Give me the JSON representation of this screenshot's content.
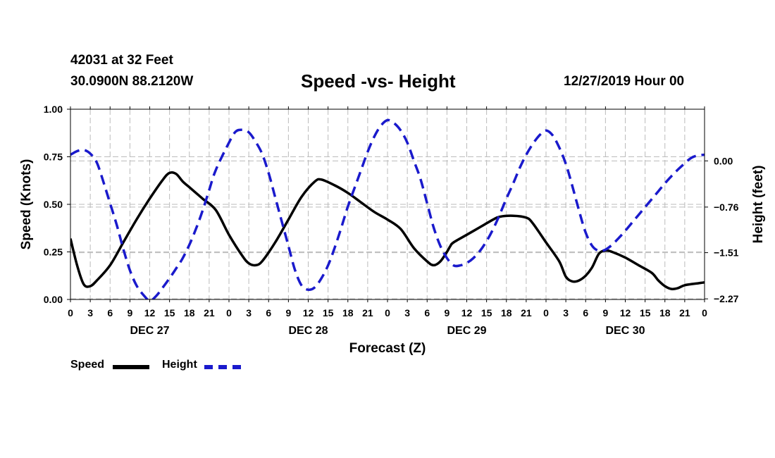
{
  "header": {
    "station": "42031 at 32 Feet",
    "coords": "30.0900N 88.2120W",
    "title": "Speed -vs- Height",
    "run_time": "12/27/2019 Hour 00"
  },
  "colors": {
    "speed": "#000000",
    "height": "#1a1acc",
    "grid": "#bbbbbb"
  },
  "legend": {
    "speed_label": "Speed",
    "height_label": "Height"
  },
  "chart_data": {
    "type": "line",
    "title": "Speed -vs- Height",
    "xlabel": "Forecast (Z)",
    "ylabel": "Speed (Knots)",
    "y2label": "Height (feet)",
    "xlim": [
      0,
      96
    ],
    "ylim": [
      0,
      1
    ],
    "y2lim": [
      -2.28,
      0.85
    ],
    "x_ticks": [
      0,
      3,
      6,
      9,
      12,
      15,
      18,
      21,
      24,
      27,
      30,
      33,
      36,
      39,
      42,
      45,
      48,
      51,
      54,
      57,
      60,
      63,
      66,
      69,
      72,
      75,
      78,
      81,
      84,
      87,
      90,
      93,
      96
    ],
    "x_tick_labels": [
      "0",
      "3",
      "6",
      "9",
      "12",
      "15",
      "18",
      "21",
      "0",
      "3",
      "6",
      "9",
      "12",
      "15",
      "18",
      "21",
      "0",
      "3",
      "6",
      "9",
      "12",
      "15",
      "18",
      "21",
      "0",
      "3",
      "6",
      "9",
      "12",
      "15",
      "18",
      "21",
      "0"
    ],
    "day_labels": [
      {
        "x": 12,
        "label": "DEC 27"
      },
      {
        "x": 36,
        "label": "DEC 28"
      },
      {
        "x": 60,
        "label": "DEC 29"
      },
      {
        "x": 84,
        "label": "DEC 30"
      }
    ],
    "y_ticks": [
      0,
      0.25,
      0.5,
      0.75,
      1
    ],
    "y_tick_labels": [
      "0.00",
      "0.25",
      "0.50",
      "0.75",
      "1.00"
    ],
    "y2_ticks": [
      0,
      -0.76,
      -1.51,
      -2.27
    ],
    "y2_tick_labels": [
      "0.00",
      "−0.76",
      "−1.51",
      "−2.27"
    ],
    "series": [
      {
        "name": "Speed",
        "axis": "left",
        "style": "solid",
        "points": [
          [
            0,
            0.32
          ],
          [
            1,
            0.18
          ],
          [
            2,
            0.08
          ],
          [
            3,
            0.07
          ],
          [
            4,
            0.1
          ],
          [
            6,
            0.18
          ],
          [
            8,
            0.3
          ],
          [
            10,
            0.42
          ],
          [
            12,
            0.53
          ],
          [
            14,
            0.63
          ],
          [
            15,
            0.665
          ],
          [
            16,
            0.66
          ],
          [
            17,
            0.62
          ],
          [
            18,
            0.59
          ],
          [
            20,
            0.53
          ],
          [
            22,
            0.47
          ],
          [
            24,
            0.34
          ],
          [
            26,
            0.23
          ],
          [
            27,
            0.19
          ],
          [
            28,
            0.18
          ],
          [
            29,
            0.2
          ],
          [
            31,
            0.3
          ],
          [
            33,
            0.42
          ],
          [
            35,
            0.54
          ],
          [
            37,
            0.62
          ],
          [
            38,
            0.63
          ],
          [
            40,
            0.6
          ],
          [
            42,
            0.56
          ],
          [
            44,
            0.51
          ],
          [
            46,
            0.46
          ],
          [
            48,
            0.42
          ],
          [
            50,
            0.37
          ],
          [
            52,
            0.27
          ],
          [
            54,
            0.2
          ],
          [
            55,
            0.18
          ],
          [
            56,
            0.2
          ],
          [
            57,
            0.25
          ],
          [
            57.5,
            0.28
          ],
          [
            58,
            0.3
          ],
          [
            60,
            0.34
          ],
          [
            62,
            0.38
          ],
          [
            64,
            0.42
          ],
          [
            65,
            0.435
          ],
          [
            67,
            0.44
          ],
          [
            69,
            0.43
          ],
          [
            70,
            0.4
          ],
          [
            72,
            0.3
          ],
          [
            74,
            0.2
          ],
          [
            75,
            0.12
          ],
          [
            76,
            0.095
          ],
          [
            77,
            0.1
          ],
          [
            78,
            0.125
          ],
          [
            79,
            0.17
          ],
          [
            80,
            0.24
          ],
          [
            81,
            0.257
          ],
          [
            82,
            0.25
          ],
          [
            84,
            0.22
          ],
          [
            86,
            0.18
          ],
          [
            88,
            0.14
          ],
          [
            89,
            0.1
          ],
          [
            90,
            0.07
          ],
          [
            91,
            0.055
          ],
          [
            92,
            0.06
          ],
          [
            93,
            0.075
          ],
          [
            95,
            0.085
          ],
          [
            96,
            0.09
          ]
        ]
      },
      {
        "name": "Height",
        "axis": "right",
        "style": "dashed",
        "points": [
          [
            0,
            0.1
          ],
          [
            1,
            0.16
          ],
          [
            2,
            0.18
          ],
          [
            3,
            0.12
          ],
          [
            4,
            -0.03
          ],
          [
            5,
            -0.35
          ],
          [
            6,
            -0.7
          ],
          [
            7,
            -1.05
          ],
          [
            8,
            -1.45
          ],
          [
            9,
            -1.8
          ],
          [
            10,
            -2.05
          ],
          [
            11,
            -2.2
          ],
          [
            12,
            -2.3
          ],
          [
            13,
            -2.22
          ],
          [
            14,
            -2.08
          ],
          [
            15,
            -1.93
          ],
          [
            16,
            -1.77
          ],
          [
            17,
            -1.6
          ],
          [
            18,
            -1.38
          ],
          [
            19,
            -1.12
          ],
          [
            20,
            -0.82
          ],
          [
            21,
            -0.48
          ],
          [
            22,
            -0.15
          ],
          [
            24,
            0.3
          ],
          [
            25,
            0.48
          ],
          [
            26,
            0.51
          ],
          [
            27,
            0.47
          ],
          [
            28,
            0.32
          ],
          [
            29,
            0.12
          ],
          [
            30,
            -0.2
          ],
          [
            31,
            -0.6
          ],
          [
            32,
            -1.0
          ],
          [
            33,
            -1.4
          ],
          [
            34,
            -1.8
          ],
          [
            35,
            -2.05
          ],
          [
            36,
            -2.12
          ],
          [
            37,
            -2.08
          ],
          [
            38,
            -1.93
          ],
          [
            39,
            -1.72
          ],
          [
            40,
            -1.43
          ],
          [
            41,
            -1.1
          ],
          [
            42,
            -0.75
          ],
          [
            43,
            -0.45
          ],
          [
            44,
            -0.15
          ],
          [
            45,
            0.15
          ],
          [
            46,
            0.4
          ],
          [
            47,
            0.58
          ],
          [
            48,
            0.67
          ],
          [
            49,
            0.62
          ],
          [
            50,
            0.5
          ],
          [
            51,
            0.3
          ],
          [
            52,
            0.0
          ],
          [
            53,
            -0.3
          ],
          [
            54,
            -0.7
          ],
          [
            55,
            -1.1
          ],
          [
            56,
            -1.4
          ],
          [
            57,
            -1.6
          ],
          [
            58,
            -1.72
          ],
          [
            59,
            -1.72
          ],
          [
            60,
            -1.68
          ],
          [
            61,
            -1.6
          ],
          [
            62,
            -1.48
          ],
          [
            63,
            -1.32
          ],
          [
            64,
            -1.12
          ],
          [
            65,
            -0.88
          ],
          [
            66,
            -0.62
          ],
          [
            67,
            -0.38
          ],
          [
            68,
            -0.12
          ],
          [
            69,
            0.1
          ],
          [
            70,
            0.28
          ],
          [
            71,
            0.42
          ],
          [
            72,
            0.5
          ],
          [
            73,
            0.42
          ],
          [
            74,
            0.22
          ],
          [
            75,
            -0.05
          ],
          [
            76,
            -0.42
          ],
          [
            77,
            -0.82
          ],
          [
            78,
            -1.18
          ],
          [
            79,
            -1.4
          ],
          [
            80,
            -1.48
          ],
          [
            81,
            -1.46
          ],
          [
            82,
            -1.38
          ],
          [
            83,
            -1.27
          ],
          [
            84,
            -1.15
          ],
          [
            85,
            -1.02
          ],
          [
            86,
            -0.89
          ],
          [
            87,
            -0.76
          ],
          [
            88,
            -0.63
          ],
          [
            89,
            -0.5
          ],
          [
            90,
            -0.37
          ],
          [
            91,
            -0.25
          ],
          [
            92,
            -0.14
          ],
          [
            93,
            -0.04
          ],
          [
            94,
            0.05
          ],
          [
            95,
            0.09
          ],
          [
            96,
            0.1
          ]
        ]
      }
    ]
  }
}
